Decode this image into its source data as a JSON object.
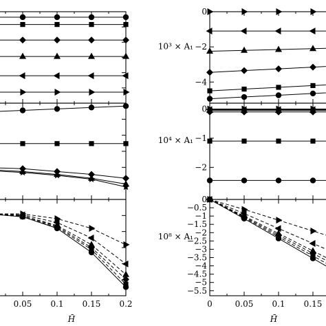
{
  "chart_data": {
    "type": "line",
    "x": [
      0,
      0.05,
      0.1,
      0.15,
      0.2
    ],
    "x_tick_labels": [
      "0",
      "0.05",
      "0.1",
      "0.15",
      "0.2"
    ],
    "xlabel": "H̄",
    "panels": [
      {
        "id": "left-top",
        "column": "left",
        "ylim": [
          0,
          1
        ],
        "ylabel": "",
        "yticks": [],
        "series": [
          {
            "marker": "circle",
            "values": [
              0.94,
              0.94,
              0.94,
              0.94,
              0.94
            ]
          },
          {
            "marker": "square",
            "values": [
              0.86,
              0.86,
              0.86,
              0.86,
              0.86
            ]
          },
          {
            "marker": "diamond",
            "values": [
              0.69,
              0.69,
              0.69,
              0.69,
              0.69
            ]
          },
          {
            "marker": "triangle-up",
            "values": [
              0.51,
              0.51,
              0.51,
              0.51,
              0.51
            ]
          },
          {
            "marker": "triangle-left",
            "values": [
              0.3,
              0.3,
              0.3,
              0.3,
              0.3
            ]
          },
          {
            "marker": "triangle-right",
            "values": [
              0.12,
              0.12,
              0.12,
              0.12,
              0.12
            ]
          }
        ]
      },
      {
        "id": "left-middle",
        "column": "left",
        "ylim": [
          0,
          1
        ],
        "ylabel": "",
        "yticks": [],
        "series": [
          {
            "marker": "circle",
            "values": [
              0.91,
              0.925,
              0.94,
              0.955,
              0.97
            ]
          },
          {
            "marker": "square",
            "values": [
              0.58,
              0.58,
              0.58,
              0.58,
              0.58
            ]
          },
          {
            "marker": "diamond",
            "values": [
              0.33,
              0.32,
              0.29,
              0.26,
              0.22
            ]
          },
          {
            "marker": "triangle-up",
            "values": [
              0.31,
              0.29,
              0.26,
              0.22,
              0.16
            ]
          },
          {
            "marker": "star",
            "values": [
              0.3,
              0.28,
              0.25,
              0.21,
              0.13
            ]
          }
        ]
      },
      {
        "id": "left-bottom",
        "column": "left",
        "ylim": [
          0,
          1
        ],
        "ylabel": "",
        "yticks": [],
        "series": [
          {
            "marker": "circle",
            "values": [
              0.85,
              0.82,
              0.7,
              0.45,
              0.09
            ]
          },
          {
            "marker": "square",
            "values": [
              0.85,
              0.82,
              0.71,
              0.48,
              0.12
            ]
          },
          {
            "marker": "diamond",
            "values": [
              0.85,
              0.83,
              0.72,
              0.5,
              0.17
            ]
          },
          {
            "marker": "triangle-up",
            "values": [
              0.85,
              0.83,
              0.73,
              0.53,
              0.22
            ]
          },
          {
            "marker": "triangle-left",
            "values": [
              0.85,
              0.84,
              0.76,
              0.6,
              0.33
            ]
          },
          {
            "marker": "triangle-right",
            "values": [
              0.85,
              0.85,
              0.8,
              0.7,
              0.53
            ]
          }
        ]
      },
      {
        "id": "right-top",
        "column": "right",
        "ylim": [
          -5.2,
          0
        ],
        "ylabel": "10³ × A₁",
        "yticks": [
          0,
          -2,
          -4
        ],
        "ytick_labels": [
          "0",
          "−2",
          "−4"
        ],
        "series": [
          {
            "marker": "triangle-right",
            "values": [
              0,
              0,
              0,
              0,
              0
            ]
          },
          {
            "marker": "triangle-left",
            "values": [
              -1.1,
              -1.1,
              -1.1,
              -1.1,
              -1.1
            ]
          },
          {
            "marker": "triangle-up",
            "values": [
              -2.25,
              -2.2,
              -2.15,
              -2.1,
              -2.05
            ]
          },
          {
            "marker": "diamond",
            "values": [
              -3.45,
              -3.35,
              -3.25,
              -3.15,
              -3.05
            ]
          },
          {
            "marker": "square",
            "values": [
              -4.5,
              -4.4,
              -4.3,
              -4.2,
              -4.1
            ]
          },
          {
            "marker": "circle",
            "values": [
              -4.95,
              -4.85,
              -4.75,
              -4.65,
              -4.55
            ]
          }
        ]
      },
      {
        "id": "right-middle",
        "column": "right",
        "ylim": [
          -3.1,
          0.2
        ],
        "ylabel": "10⁴ × A₁",
        "yticks": [
          0,
          -1,
          -2
        ],
        "ytick_labels": [
          "0",
          "−1",
          "−2"
        ],
        "series": [
          {
            "marker": "triangle-right",
            "values": [
              0,
              0,
              0,
              0,
              0
            ]
          },
          {
            "marker": "triangle-left",
            "values": [
              -0.02,
              -0.02,
              -0.02,
              -0.02,
              -0.02
            ]
          },
          {
            "marker": "triangle-up",
            "values": [
              -0.05,
              -0.05,
              -0.05,
              -0.05,
              -0.05
            ]
          },
          {
            "marker": "diamond",
            "values": [
              -0.1,
              -0.1,
              -0.1,
              -0.1,
              -0.1
            ]
          },
          {
            "marker": "square",
            "values": [
              -1.1,
              -1.1,
              -1.1,
              -1.1,
              -1.1
            ]
          },
          {
            "marker": "circle",
            "values": [
              -2.45,
              -2.45,
              -2.45,
              -2.45,
              -2.45
            ]
          }
        ]
      },
      {
        "id": "right-bottom",
        "column": "right",
        "ylim": [
          -5.8,
          0
        ],
        "ylabel": "10⁸ × A₁",
        "yticks": [
          0,
          -0.5,
          -1,
          -1.5,
          -2,
          -2.5,
          -3,
          -3.5,
          -4,
          -4.5,
          -5,
          -5.5
        ],
        "ytick_labels": [
          "0",
          "−0.5",
          "−1",
          "−1.5",
          "−2",
          "−2.5",
          "−3",
          "−3.5",
          "−4",
          "−4.5",
          "−5",
          "−5.5"
        ],
        "series": [
          {
            "marker": "triangle-right",
            "values": [
              0,
              -0.6,
              -1.25,
              -1.9,
              -2.55
            ]
          },
          {
            "marker": "triangle-left",
            "values": [
              0,
              -0.85,
              -1.75,
              -2.65,
              -3.55
            ]
          },
          {
            "marker": "triangle-up",
            "values": [
              0,
              -1.0,
              -2.05,
              -3.1,
              -4.15
            ]
          },
          {
            "marker": "diamond",
            "values": [
              0,
              -1.05,
              -2.15,
              -3.25,
              -4.35
            ]
          },
          {
            "marker": "square",
            "values": [
              0,
              -1.1,
              -2.25,
              -3.4,
              -4.55
            ]
          },
          {
            "marker": "circle",
            "values": [
              0,
              -1.15,
              -2.35,
              -3.55,
              -4.75
            ]
          }
        ]
      }
    ]
  }
}
